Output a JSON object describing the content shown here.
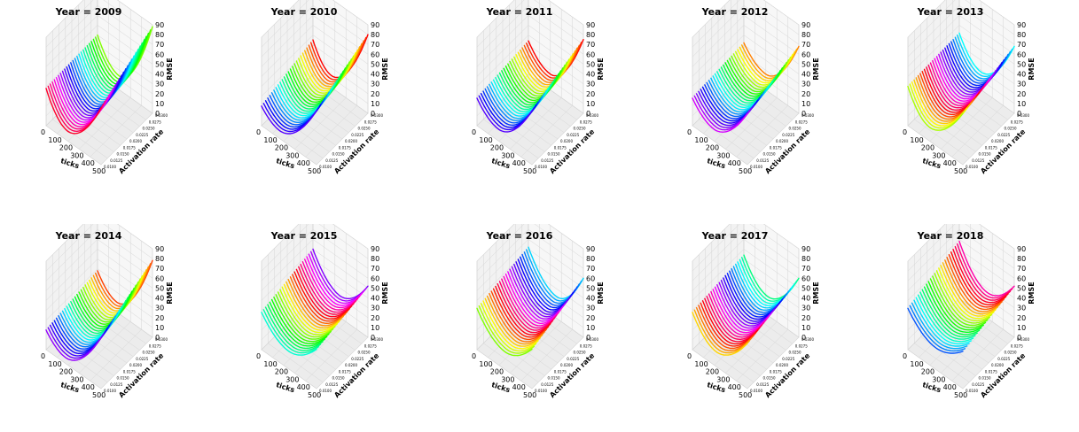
{
  "chart_data": [
    {
      "type": "surface-3d",
      "title": "Year = 2009",
      "xlabel": "ticks",
      "ylabel": "Activation rate",
      "zlabel": "RMSE",
      "xticks": [
        "0",
        "100",
        "200",
        "300",
        "400",
        "500"
      ],
      "yticks": [
        "0.0100",
        "0.0125",
        "0.0150",
        "0.0175",
        "0.0200",
        "0.0225",
        "0.0250",
        "0.0275",
        "0.0300"
      ],
      "zticks": [
        "0",
        "10",
        "20",
        "30",
        "40",
        "50",
        "60",
        "70",
        "80",
        "90"
      ],
      "xlim": [
        0,
        500
      ],
      "ylim": [
        0.01,
        0.03
      ],
      "zlim": [
        0,
        90
      ],
      "z_at_corners": {
        "x0_ymin": 38,
        "x0_ymax": 40,
        "x500_ymin": 58,
        "x500_ymax": 88
      },
      "z_valley": 10,
      "valley_x": 200,
      "palette_start_hue": 90
    },
    {
      "type": "surface-3d",
      "title": "Year = 2010",
      "xlabel": "ticks",
      "ylabel": "Activation rate",
      "zlabel": "RMSE",
      "xticks": [
        "0",
        "100",
        "200",
        "300",
        "400",
        "500"
      ],
      "yticks": [
        "0.0100",
        "0.0125",
        "0.0150",
        "0.0175",
        "0.0200",
        "0.0225",
        "0.0250",
        "0.0275",
        "0.0300"
      ],
      "zticks": [
        "0",
        "10",
        "20",
        "30",
        "40",
        "50",
        "60",
        "70",
        "80",
        "90"
      ],
      "xlim": [
        0,
        500
      ],
      "ylim": [
        0.01,
        0.03
      ],
      "zlim": [
        0,
        90
      ],
      "z_at_corners": {
        "x0_ymin": 20,
        "x0_ymax": 35,
        "x500_ymin": 55,
        "x500_ymax": 80
      },
      "z_valley": 8,
      "valley_x": 170,
      "palette_start_hue": 0
    },
    {
      "type": "surface-3d",
      "title": "Year = 2011",
      "xlabel": "ticks",
      "ylabel": "Activation rate",
      "zlabel": "RMSE",
      "xticks": [
        "0",
        "100",
        "200",
        "300",
        "400",
        "500"
      ],
      "yticks": [
        "0.0100",
        "0.0125",
        "0.0150",
        "0.0175",
        "0.0200",
        "0.0225",
        "0.0250",
        "0.0275",
        "0.0300"
      ],
      "zticks": [
        "0",
        "10",
        "20",
        "30",
        "40",
        "50",
        "60",
        "70",
        "80",
        "90"
      ],
      "xlim": [
        0,
        500
      ],
      "ylim": [
        0.01,
        0.03
      ],
      "zlim": [
        0,
        90
      ],
      "z_at_corners": {
        "x0_ymin": 28,
        "x0_ymax": 34,
        "x500_ymin": 55,
        "x500_ymax": 75
      },
      "z_valley": 12,
      "valley_x": 200,
      "palette_start_hue": 0
    },
    {
      "type": "surface-3d",
      "title": "Year = 2012",
      "xlabel": "ticks",
      "ylabel": "Activation rate",
      "zlabel": "RMSE",
      "xticks": [
        "0",
        "100",
        "200",
        "300",
        "400",
        "500"
      ],
      "yticks": [
        "0.0100",
        "0.0125",
        "0.0150",
        "0.0175",
        "0.0200",
        "0.0225",
        "0.0250",
        "0.0275",
        "0.0300"
      ],
      "zticks": [
        "0",
        "10",
        "20",
        "30",
        "40",
        "50",
        "60",
        "70",
        "80",
        "90"
      ],
      "xlim": [
        0,
        500
      ],
      "ylim": [
        0.01,
        0.03
      ],
      "zlim": [
        0,
        90
      ],
      "z_at_corners": {
        "x0_ymin": 28,
        "x0_ymax": 32,
        "x500_ymin": 52,
        "x500_ymax": 68
      },
      "z_valley": 12,
      "valley_x": 200,
      "palette_start_hue": 30
    },
    {
      "type": "surface-3d",
      "title": "Year = 2013",
      "xlabel": "ticks",
      "ylabel": "Activation rate",
      "zlabel": "RMSE",
      "xticks": [
        "0",
        "100",
        "200",
        "300",
        "400",
        "500"
      ],
      "yticks": [
        "0.0100",
        "0.0125",
        "0.0150",
        "0.0175",
        "0.0200",
        "0.0225",
        "0.0250",
        "0.0275",
        "0.0300"
      ],
      "zticks": [
        "0",
        "10",
        "20",
        "30",
        "40",
        "50",
        "60",
        "70",
        "80",
        "90"
      ],
      "xlim": [
        0,
        500
      ],
      "ylim": [
        0.01,
        0.03
      ],
      "zlim": [
        0,
        90
      ],
      "z_at_corners": {
        "x0_ymin": 40,
        "x0_ymax": 42,
        "x500_ymin": 52,
        "x500_ymax": 68
      },
      "z_valley": 14,
      "valley_x": 200,
      "palette_start_hue": 180
    },
    {
      "type": "surface-3d",
      "title": "Year = 2014",
      "xlabel": "ticks",
      "ylabel": "Activation rate",
      "zlabel": "RMSE",
      "xticks": [
        "0",
        "100",
        "200",
        "300",
        "400",
        "500"
      ],
      "yticks": [
        "0.0100",
        "0.0125",
        "0.0150",
        "0.0175",
        "0.0200",
        "0.0225",
        "0.0250",
        "0.0275",
        "0.0300"
      ],
      "zticks": [
        "0",
        "10",
        "20",
        "30",
        "40",
        "50",
        "60",
        "70",
        "80",
        "90"
      ],
      "xlim": [
        0,
        500
      ],
      "ylim": [
        0.01,
        0.03
      ],
      "zlim": [
        0,
        90
      ],
      "z_at_corners": {
        "x0_ymin": 20,
        "x0_ymax": 28,
        "x500_ymin": 52,
        "x500_ymax": 78
      },
      "z_valley": 6,
      "valley_x": 180,
      "palette_start_hue": 15
    },
    {
      "type": "surface-3d",
      "title": "Year = 2015",
      "xlabel": "ticks",
      "ylabel": "Activation rate",
      "zlabel": "RMSE",
      "xticks": [
        "0",
        "100",
        "200",
        "300",
        "400",
        "500"
      ],
      "yticks": [
        "0.0100",
        "0.0125",
        "0.0150",
        "0.0175",
        "0.0200",
        "0.0225",
        "0.0250",
        "0.0275",
        "0.0300"
      ],
      "zticks": [
        "0",
        "10",
        "20",
        "30",
        "40",
        "50",
        "60",
        "70",
        "80",
        "90"
      ],
      "xlim": [
        0,
        500
      ],
      "ylim": [
        0.01,
        0.03
      ],
      "zlim": [
        0,
        90
      ],
      "z_at_corners": {
        "x0_ymin": 38,
        "x0_ymax": 50,
        "x500_ymin": 40,
        "x500_ymax": 52
      },
      "z_valley": 18,
      "valley_x": 250,
      "palette_start_hue": 270
    },
    {
      "type": "surface-3d",
      "title": "Year = 2016",
      "xlabel": "ticks",
      "ylabel": "Activation rate",
      "zlabel": "RMSE",
      "xticks": [
        "0",
        "100",
        "200",
        "300",
        "400",
        "500"
      ],
      "yticks": [
        "0.0100",
        "0.0125",
        "0.0150",
        "0.0175",
        "0.0200",
        "0.0225",
        "0.0250",
        "0.0275",
        "0.0300"
      ],
      "zticks": [
        "0",
        "10",
        "20",
        "30",
        "40",
        "50",
        "60",
        "70",
        "80",
        "90"
      ],
      "xlim": [
        0,
        500
      ],
      "ylim": [
        0.01,
        0.03
      ],
      "zlim": [
        0,
        90
      ],
      "z_at_corners": {
        "x0_ymin": 42,
        "x0_ymax": 52,
        "x500_ymin": 40,
        "x500_ymax": 60
      },
      "z_valley": 18,
      "valley_x": 260,
      "palette_start_hue": 190
    },
    {
      "type": "surface-3d",
      "title": "Year = 2017",
      "xlabel": "ticks",
      "ylabel": "Activation rate",
      "zlabel": "RMSE",
      "xticks": [
        "0",
        "100",
        "200",
        "300",
        "400",
        "500"
      ],
      "yticks": [
        "0.0100",
        "0.0125",
        "0.0150",
        "0.0175",
        "0.0200",
        "0.0225",
        "0.0250",
        "0.0275",
        "0.0300"
      ],
      "zticks": [
        "0",
        "10",
        "20",
        "30",
        "40",
        "50",
        "60",
        "70",
        "80",
        "90"
      ],
      "xlim": [
        0,
        500
      ],
      "ylim": [
        0.01,
        0.03
      ],
      "zlim": [
        0,
        90
      ],
      "z_at_corners": {
        "x0_ymin": 38,
        "x0_ymax": 44,
        "x500_ymin": 46,
        "x500_ymax": 60
      },
      "z_valley": 15,
      "valley_x": 220,
      "palette_start_hue": 150
    },
    {
      "type": "surface-3d",
      "title": "Year = 2018",
      "xlabel": "ticks",
      "ylabel": "Activation rate",
      "zlabel": "RMSE",
      "xticks": [
        "0",
        "100",
        "200",
        "300",
        "400",
        "500"
      ],
      "yticks": [
        "0.0100",
        "0.0125",
        "0.0150",
        "0.0175",
        "0.0200",
        "0.0225",
        "0.0250",
        "0.0275",
        "0.0300"
      ],
      "zticks": [
        "0",
        "10",
        "20",
        "30",
        "40",
        "50",
        "60",
        "70",
        "80",
        "90"
      ],
      "xlim": [
        0,
        500
      ],
      "ylim": [
        0.01,
        0.03
      ],
      "zlim": [
        0,
        90
      ],
      "z_at_corners": {
        "x0_ymin": 42,
        "x0_ymax": 58,
        "x500_ymin": 38,
        "x500_ymax": 52
      },
      "z_valley": 22,
      "valley_x": 260,
      "palette_start_hue": 320
    }
  ]
}
